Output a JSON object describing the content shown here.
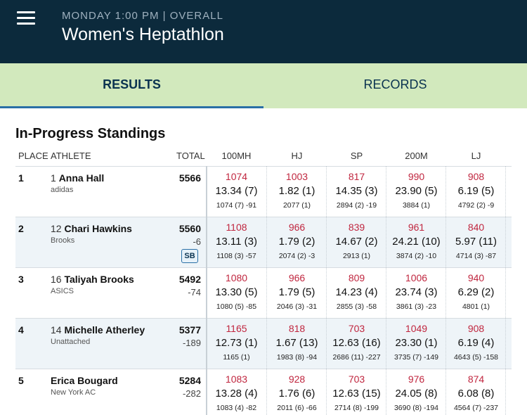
{
  "header": {
    "subtitle": "MONDAY 1:00 PM | OVERALL",
    "title": "Women's Heptathlon"
  },
  "tabs": [
    {
      "label": "RESULTS",
      "active": true
    },
    {
      "label": "RECORDS",
      "active": false
    }
  ],
  "section_title": "In-Progress Standings",
  "columns": {
    "place": "PLACE",
    "athlete": "ATHLETE",
    "total": "TOTAL",
    "events": [
      "100MH",
      "HJ",
      "SP",
      "200M",
      "LJ"
    ]
  },
  "rows": [
    {
      "place": "1",
      "bib": "1",
      "name": "Anna Hall",
      "team": "adidas",
      "total": "5566",
      "diff": "",
      "badge": "",
      "events": [
        {
          "pts": "1074",
          "perf": "13.34 (7)",
          "cum": "1074 (7) -91"
        },
        {
          "pts": "1003",
          "perf": "1.82 (1)",
          "cum": "2077 (1)"
        },
        {
          "pts": "817",
          "perf": "14.35 (3)",
          "cum": "2894 (2) -19"
        },
        {
          "pts": "990",
          "perf": "23.90 (5)",
          "cum": "3884 (1)"
        },
        {
          "pts": "908",
          "perf": "6.19 (5)",
          "cum": "4792 (2) -9"
        }
      ]
    },
    {
      "place": "2",
      "bib": "12",
      "name": "Chari Hawkins",
      "team": "Brooks",
      "total": "5560",
      "diff": "-6",
      "badge": "SB",
      "events": [
        {
          "pts": "1108",
          "perf": "13.11 (3)",
          "cum": "1108 (3) -57"
        },
        {
          "pts": "966",
          "perf": "1.79 (2)",
          "cum": "2074 (2) -3"
        },
        {
          "pts": "839",
          "perf": "14.67 (2)",
          "cum": "2913 (1)"
        },
        {
          "pts": "961",
          "perf": "24.21 (10)",
          "cum": "3874 (2) -10"
        },
        {
          "pts": "840",
          "perf": "5.97 (11)",
          "cum": "4714 (3) -87"
        }
      ]
    },
    {
      "place": "3",
      "bib": "16",
      "name": "Taliyah Brooks",
      "team": "ASICS",
      "total": "5492",
      "diff": "-74",
      "badge": "",
      "events": [
        {
          "pts": "1080",
          "perf": "13.30 (5)",
          "cum": "1080 (5) -85"
        },
        {
          "pts": "966",
          "perf": "1.79 (5)",
          "cum": "2046 (3) -31"
        },
        {
          "pts": "809",
          "perf": "14.23 (4)",
          "cum": "2855 (3) -58"
        },
        {
          "pts": "1006",
          "perf": "23.74 (3)",
          "cum": "3861 (3) -23"
        },
        {
          "pts": "940",
          "perf": "6.29 (2)",
          "cum": "4801 (1)"
        }
      ]
    },
    {
      "place": "4",
      "bib": "14",
      "name": "Michelle Atherley",
      "team": "Unattached",
      "total": "5377",
      "diff": "-189",
      "badge": "",
      "events": [
        {
          "pts": "1165",
          "perf": "12.73 (1)",
          "cum": "1165 (1)"
        },
        {
          "pts": "818",
          "perf": "1.67 (13)",
          "cum": "1983 (8) -94"
        },
        {
          "pts": "703",
          "perf": "12.63 (16)",
          "cum": "2686 (11) -227"
        },
        {
          "pts": "1049",
          "perf": "23.30 (1)",
          "cum": "3735 (7) -149"
        },
        {
          "pts": "908",
          "perf": "6.19 (4)",
          "cum": "4643 (5) -158"
        }
      ]
    },
    {
      "place": "5",
      "bib": "",
      "name": "Erica Bougard",
      "team": "New York AC",
      "total": "5284",
      "diff": "-282",
      "badge": "",
      "events": [
        {
          "pts": "1083",
          "perf": "13.28 (4)",
          "cum": "1083 (4) -82"
        },
        {
          "pts": "928",
          "perf": "1.76 (6)",
          "cum": "2011 (6) -66"
        },
        {
          "pts": "703",
          "perf": "12.63 (15)",
          "cum": "2714 (8) -199"
        },
        {
          "pts": "976",
          "perf": "24.05 (8)",
          "cum": "3690 (8) -194"
        },
        {
          "pts": "874",
          "perf": "6.08 (8)",
          "cum": "4564 (7) -237"
        }
      ]
    }
  ],
  "colors": {
    "header_bg": "#0c2a3c",
    "tabs_bg": "#d2e9bd",
    "points_red": "#c0263f",
    "accent_blue": "#2a6fa6",
    "alt_row": "#eef4f8"
  }
}
